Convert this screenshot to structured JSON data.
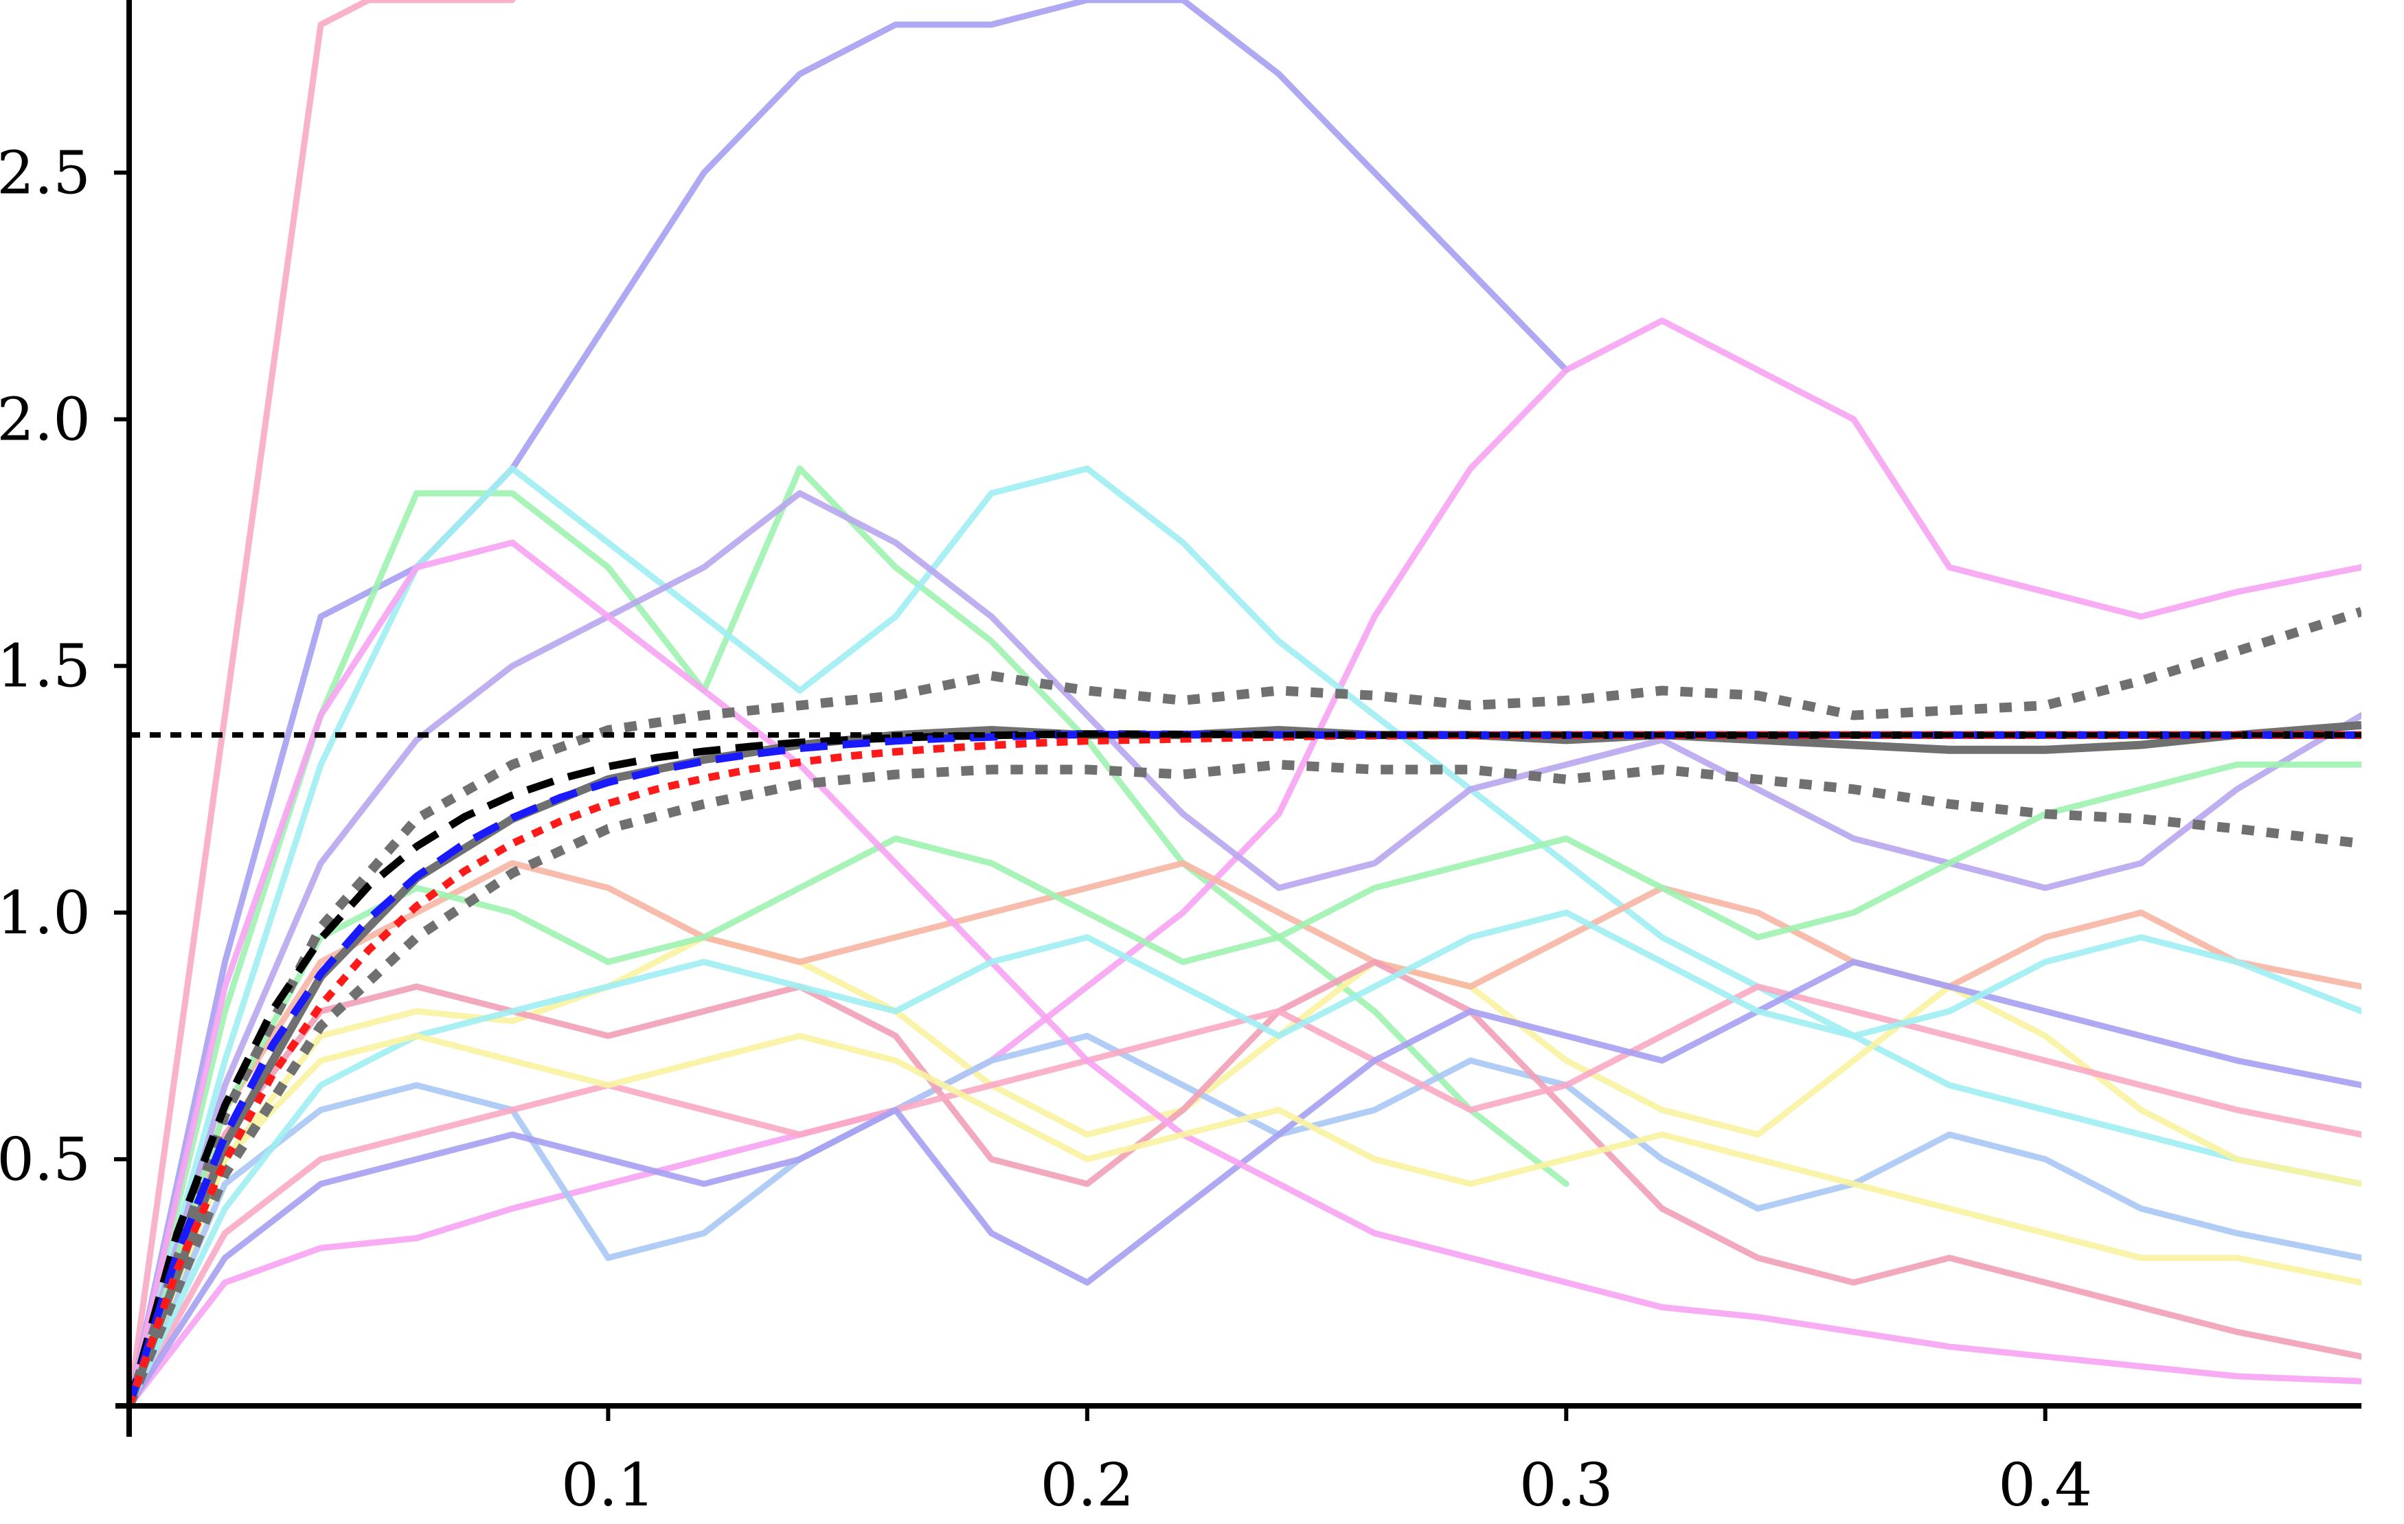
{
  "chart_data": {
    "type": "line",
    "title": "",
    "xlabel": "",
    "ylabel": "",
    "xlim": [
      0,
      0.466
    ],
    "ylim": [
      0,
      2.85
    ],
    "x_ticks": [
      {
        "value": 0.1,
        "label": "0.1"
      },
      {
        "value": 0.2,
        "label": "0.2"
      },
      {
        "value": 0.3,
        "label": "0.3"
      },
      {
        "value": 0.4,
        "label": "0.4"
      }
    ],
    "y_ticks": [
      {
        "value": 0.5,
        "label": "0.5"
      },
      {
        "value": 1.0,
        "label": "1.0"
      },
      {
        "value": 1.5,
        "label": "1.5"
      },
      {
        "value": 2.0,
        "label": "2.0"
      },
      {
        "value": 2.5,
        "label": "2.5"
      }
    ],
    "grid": false,
    "legend": "none",
    "colors": {
      "axis": "#000000",
      "sample_paths": [
        "#f9a8c4",
        "#a6a0f2",
        "#9ef2b0",
        "#f6a3f2",
        "#9eeef2",
        "#f8f3a0",
        "#a8c8f4",
        "#f7b5a3",
        "#f2a0b6",
        "#b8a6ee"
      ],
      "mean_band": "#707070",
      "empirical_mean": "#707070",
      "theory_black": "#000000",
      "theory_blue": "#1a1aff",
      "theory_red": "#ff1a1a",
      "asymptote": "#000000"
    },
    "reference_lines": [
      {
        "orientation": "horizontal",
        "y": 1.36,
        "style": "dotted",
        "color": "#000000"
      }
    ],
    "theory_curves": [
      {
        "x": [
          0,
          0.01,
          0.02,
          0.03,
          0.04,
          0.05,
          0.06,
          0.07,
          0.08,
          0.09,
          0.1,
          0.11,
          0.12,
          0.13,
          0.14,
          0.15,
          0.16,
          0.17,
          0.18,
          0.19,
          0.2,
          0.25,
          0.3,
          0.35,
          0.4,
          0.466
        ],
        "y": [
          0,
          0.349,
          0.609,
          0.803,
          0.947,
          1.054,
          1.134,
          1.194,
          1.238,
          1.271,
          1.296,
          1.314,
          1.327,
          1.337,
          1.345,
          1.35,
          1.354,
          1.357,
          1.359,
          1.361,
          1.362,
          1.36,
          1.36,
          1.36,
          1.36,
          1.36
        ],
        "style": "dashed",
        "color": "#000000"
      },
      {
        "x": [
          0,
          0.01,
          0.02,
          0.03,
          0.04,
          0.05,
          0.06,
          0.07,
          0.08,
          0.09,
          0.1,
          0.11,
          0.12,
          0.13,
          0.14,
          0.15,
          0.16,
          0.17,
          0.18,
          0.19,
          0.2,
          0.25,
          0.3,
          0.35,
          0.4,
          0.466
        ],
        "y": [
          0,
          0.308,
          0.547,
          0.732,
          0.876,
          0.987,
          1.073,
          1.14,
          1.192,
          1.233,
          1.264,
          1.288,
          1.307,
          1.321,
          1.333,
          1.341,
          1.348,
          1.353,
          1.356,
          1.359,
          1.361,
          1.36,
          1.36,
          1.36,
          1.36,
          1.36
        ],
        "style": "dashed",
        "color": "#1a1aff"
      },
      {
        "x": [
          0,
          0.01,
          0.02,
          0.03,
          0.04,
          0.05,
          0.06,
          0.07,
          0.08,
          0.09,
          0.1,
          0.11,
          0.12,
          0.13,
          0.14,
          0.15,
          0.16,
          0.17,
          0.18,
          0.19,
          0.2,
          0.25,
          0.3,
          0.35,
          0.4,
          0.466
        ],
        "y": [
          0,
          0.276,
          0.496,
          0.672,
          0.812,
          0.924,
          1.013,
          1.084,
          1.14,
          1.185,
          1.221,
          1.25,
          1.272,
          1.291,
          1.305,
          1.317,
          1.326,
          1.333,
          1.339,
          1.344,
          1.348,
          1.358,
          1.36,
          1.36,
          1.36,
          1.36
        ],
        "style": "dotted",
        "color": "#ff1a1a"
      }
    ],
    "mean_band": {
      "x": [
        0,
        0.02,
        0.04,
        0.06,
        0.08,
        0.1,
        0.12,
        0.14,
        0.16,
        0.18,
        0.2,
        0.22,
        0.24,
        0.26,
        0.28,
        0.3,
        0.32,
        0.34,
        0.36,
        0.38,
        0.4,
        0.42,
        0.44,
        0.466
      ],
      "empirical_mean": [
        0,
        0.53,
        0.87,
        1.07,
        1.19,
        1.27,
        1.31,
        1.34,
        1.36,
        1.37,
        1.36,
        1.36,
        1.37,
        1.36,
        1.36,
        1.35,
        1.36,
        1.35,
        1.34,
        1.33,
        1.33,
        1.34,
        1.36,
        1.38
      ],
      "upper": [
        0,
        0.59,
        0.97,
        1.19,
        1.3,
        1.37,
        1.4,
        1.42,
        1.44,
        1.48,
        1.45,
        1.43,
        1.45,
        1.44,
        1.42,
        1.43,
        1.45,
        1.44,
        1.4,
        1.41,
        1.42,
        1.47,
        1.53,
        1.61
      ],
      "lower": [
        0,
        0.47,
        0.77,
        0.95,
        1.08,
        1.17,
        1.22,
        1.26,
        1.28,
        1.29,
        1.29,
        1.28,
        1.3,
        1.29,
        1.29,
        1.27,
        1.29,
        1.27,
        1.25,
        1.22,
        1.2,
        1.19,
        1.17,
        1.14
      ]
    },
    "sample_paths": [
      {
        "x": [
          0,
          0.01,
          0.02,
          0.03,
          0.04,
          0.05,
          0.06,
          0.07,
          0.08
        ],
        "y": [
          0,
          0.7,
          1.4,
          2.1,
          2.8,
          2.85,
          2.85,
          2.85,
          2.85
        ]
      },
      {
        "x": [
          0,
          0.02,
          0.04,
          0.06,
          0.08,
          0.1,
          0.12,
          0.14,
          0.16,
          0.18,
          0.2,
          0.22,
          0.24,
          0.26,
          0.28,
          0.3
        ],
        "y": [
          0,
          0.9,
          1.6,
          1.7,
          1.9,
          2.2,
          2.5,
          2.7,
          2.8,
          2.8,
          2.85,
          2.85,
          2.7,
          2.5,
          2.3,
          2.1
        ]
      },
      {
        "x": [
          0,
          0.02,
          0.04,
          0.06,
          0.08,
          0.1,
          0.12,
          0.14,
          0.16,
          0.18,
          0.2,
          0.22,
          0.24,
          0.26,
          0.28,
          0.3
        ],
        "y": [
          0,
          0.8,
          1.4,
          1.85,
          1.85,
          1.7,
          1.45,
          1.9,
          1.7,
          1.55,
          1.35,
          1.1,
          0.95,
          0.8,
          0.6,
          0.45
        ]
      },
      {
        "x": [
          0,
          0.02,
          0.04,
          0.06,
          0.08,
          0.1,
          0.12,
          0.14,
          0.16,
          0.18,
          0.2,
          0.22,
          0.24,
          0.26,
          0.28,
          0.3,
          0.32,
          0.34,
          0.36,
          0.38,
          0.4,
          0.42,
          0.44,
          0.466
        ],
        "y": [
          0,
          0.25,
          0.32,
          0.34,
          0.4,
          0.45,
          0.5,
          0.55,
          0.6,
          0.7,
          0.85,
          1.0,
          1.2,
          1.6,
          1.9,
          2.1,
          2.2,
          2.1,
          2.0,
          1.7,
          1.65,
          1.6,
          1.65,
          1.7
        ]
      },
      {
        "x": [
          0,
          0.02,
          0.04,
          0.06,
          0.08,
          0.1,
          0.12,
          0.14,
          0.16,
          0.18,
          0.2,
          0.22,
          0.24,
          0.26,
          0.28,
          0.3,
          0.32,
          0.34,
          0.36,
          0.38,
          0.4,
          0.42,
          0.44,
          0.466
        ],
        "y": [
          0,
          0.7,
          1.3,
          1.7,
          1.9,
          1.75,
          1.6,
          1.45,
          1.6,
          1.85,
          1.9,
          1.75,
          1.55,
          1.4,
          1.25,
          1.1,
          0.95,
          0.85,
          0.75,
          0.65,
          0.6,
          0.55,
          0.5,
          0.45
        ]
      },
      {
        "x": [
          0,
          0.02,
          0.04,
          0.06,
          0.08,
          0.1,
          0.12,
          0.14,
          0.16,
          0.18,
          0.2,
          0.22,
          0.24,
          0.26,
          0.28,
          0.3,
          0.32,
          0.34,
          0.36,
          0.38,
          0.4,
          0.42,
          0.44,
          0.466
        ],
        "y": [
          0,
          0.5,
          0.75,
          0.8,
          0.78,
          0.85,
          0.95,
          0.9,
          0.8,
          0.65,
          0.55,
          0.6,
          0.75,
          0.9,
          0.85,
          0.7,
          0.6,
          0.55,
          0.7,
          0.85,
          0.75,
          0.6,
          0.5,
          0.45
        ]
      },
      {
        "x": [
          0,
          0.02,
          0.04,
          0.06,
          0.08,
          0.1,
          0.12,
          0.14,
          0.16,
          0.18,
          0.2,
          0.22,
          0.24,
          0.26,
          0.28,
          0.3,
          0.32,
          0.34,
          0.36,
          0.38,
          0.4,
          0.42,
          0.44,
          0.466
        ],
        "y": [
          0,
          0.45,
          0.6,
          0.65,
          0.6,
          0.3,
          0.35,
          0.5,
          0.6,
          0.7,
          0.75,
          0.65,
          0.55,
          0.6,
          0.7,
          0.65,
          0.5,
          0.4,
          0.45,
          0.55,
          0.5,
          0.4,
          0.35,
          0.3
        ]
      },
      {
        "x": [
          0,
          0.02,
          0.04,
          0.06,
          0.08,
          0.1,
          0.12,
          0.14,
          0.16,
          0.18,
          0.2,
          0.22,
          0.24,
          0.26,
          0.28,
          0.3,
          0.32,
          0.34,
          0.36,
          0.38,
          0.4,
          0.42,
          0.44,
          0.466
        ],
        "y": [
          0,
          0.6,
          0.9,
          1.0,
          1.1,
          1.05,
          0.95,
          0.9,
          0.95,
          1.0,
          1.05,
          1.1,
          1.0,
          0.9,
          0.85,
          0.95,
          1.05,
          1.0,
          0.9,
          0.85,
          0.95,
          1.0,
          0.9,
          0.85
        ]
      },
      {
        "x": [
          0,
          0.02,
          0.04,
          0.06,
          0.08,
          0.1,
          0.12,
          0.14,
          0.16,
          0.18,
          0.2,
          0.22,
          0.24,
          0.26,
          0.28,
          0.3,
          0.32,
          0.34,
          0.36,
          0.38,
          0.4,
          0.42,
          0.44,
          0.466
        ],
        "y": [
          0,
          0.55,
          0.8,
          0.85,
          0.8,
          0.75,
          0.8,
          0.85,
          0.75,
          0.5,
          0.45,
          0.6,
          0.8,
          0.9,
          0.8,
          0.6,
          0.4,
          0.3,
          0.25,
          0.3,
          0.25,
          0.2,
          0.15,
          0.1
        ]
      },
      {
        "x": [
          0,
          0.02,
          0.04,
          0.06,
          0.08,
          0.1,
          0.12,
          0.14,
          0.16,
          0.18,
          0.2,
          0.22,
          0.24,
          0.26,
          0.28,
          0.3,
          0.32,
          0.34,
          0.36,
          0.38,
          0.4,
          0.42,
          0.44,
          0.466
        ],
        "y": [
          0,
          0.65,
          1.1,
          1.35,
          1.5,
          1.6,
          1.7,
          1.85,
          1.75,
          1.6,
          1.4,
          1.2,
          1.05,
          1.1,
          1.25,
          1.3,
          1.35,
          1.25,
          1.15,
          1.1,
          1.05,
          1.1,
          1.25,
          1.4
        ]
      },
      {
        "x": [
          0,
          0.02,
          0.04,
          0.06,
          0.08,
          0.1,
          0.12,
          0.14,
          0.16,
          0.18,
          0.2,
          0.22,
          0.24,
          0.26,
          0.28,
          0.3,
          0.32,
          0.34,
          0.36,
          0.38,
          0.4,
          0.42,
          0.44,
          0.466
        ],
        "y": [
          0,
          0.35,
          0.5,
          0.55,
          0.6,
          0.65,
          0.6,
          0.55,
          0.6,
          0.65,
          0.7,
          0.75,
          0.8,
          0.7,
          0.6,
          0.65,
          0.75,
          0.85,
          0.8,
          0.75,
          0.7,
          0.65,
          0.6,
          0.55
        ]
      },
      {
        "x": [
          0,
          0.02,
          0.04,
          0.06,
          0.08,
          0.1,
          0.12,
          0.14,
          0.16,
          0.18,
          0.2,
          0.22,
          0.24,
          0.26,
          0.28,
          0.3,
          0.32,
          0.34,
          0.36,
          0.38,
          0.4,
          0.42,
          0.44,
          0.466
        ],
        "y": [
          0,
          0.3,
          0.45,
          0.5,
          0.55,
          0.5,
          0.45,
          0.5,
          0.6,
          0.35,
          0.25,
          0.4,
          0.55,
          0.7,
          0.8,
          0.75,
          0.7,
          0.8,
          0.9,
          0.85,
          0.8,
          0.75,
          0.7,
          0.65
        ]
      },
      {
        "x": [
          0,
          0.02,
          0.04,
          0.06,
          0.08,
          0.1,
          0.12,
          0.14,
          0.16,
          0.18,
          0.2,
          0.22,
          0.24,
          0.26,
          0.28,
          0.3,
          0.32,
          0.34,
          0.36,
          0.38,
          0.4,
          0.42,
          0.44,
          0.466
        ],
        "y": [
          0,
          0.6,
          0.95,
          1.05,
          1.0,
          0.9,
          0.95,
          1.05,
          1.15,
          1.1,
          1.0,
          0.9,
          0.95,
          1.05,
          1.1,
          1.15,
          1.05,
          0.95,
          1.0,
          1.1,
          1.2,
          1.25,
          1.3,
          1.3
        ]
      },
      {
        "x": [
          0,
          0.02,
          0.04,
          0.06,
          0.08,
          0.1,
          0.12,
          0.14,
          0.16,
          0.18,
          0.2,
          0.22,
          0.24,
          0.26,
          0.28,
          0.3,
          0.32,
          0.34,
          0.36,
          0.38,
          0.4,
          0.42,
          0.44,
          0.466
        ],
        "y": [
          0,
          0.85,
          1.4,
          1.7,
          1.75,
          1.6,
          1.45,
          1.3,
          1.1,
          0.9,
          0.7,
          0.55,
          0.45,
          0.35,
          0.3,
          0.25,
          0.2,
          0.18,
          0.15,
          0.12,
          0.1,
          0.08,
          0.06,
          0.05
        ]
      },
      {
        "x": [
          0,
          0.02,
          0.04,
          0.06,
          0.08,
          0.1,
          0.12,
          0.14,
          0.16,
          0.18,
          0.2,
          0.22,
          0.24,
          0.26,
          0.28,
          0.3,
          0.32,
          0.34,
          0.36,
          0.38,
          0.4,
          0.42,
          0.44,
          0.466
        ],
        "y": [
          0,
          0.4,
          0.65,
          0.75,
          0.8,
          0.85,
          0.9,
          0.85,
          0.8,
          0.9,
          0.95,
          0.85,
          0.75,
          0.85,
          0.95,
          1.0,
          0.9,
          0.8,
          0.75,
          0.8,
          0.9,
          0.95,
          0.9,
          0.8
        ]
      },
      {
        "x": [
          0,
          0.02,
          0.04,
          0.06,
          0.08,
          0.1,
          0.12,
          0.14,
          0.16,
          0.18,
          0.2,
          0.22,
          0.24,
          0.26,
          0.28,
          0.3,
          0.32,
          0.34,
          0.36,
          0.38,
          0.4,
          0.42,
          0.44,
          0.466
        ],
        "y": [
          0,
          0.5,
          0.7,
          0.75,
          0.7,
          0.65,
          0.7,
          0.75,
          0.7,
          0.6,
          0.5,
          0.55,
          0.6,
          0.5,
          0.45,
          0.5,
          0.55,
          0.5,
          0.45,
          0.4,
          0.35,
          0.3,
          0.3,
          0.25
        ]
      }
    ]
  }
}
